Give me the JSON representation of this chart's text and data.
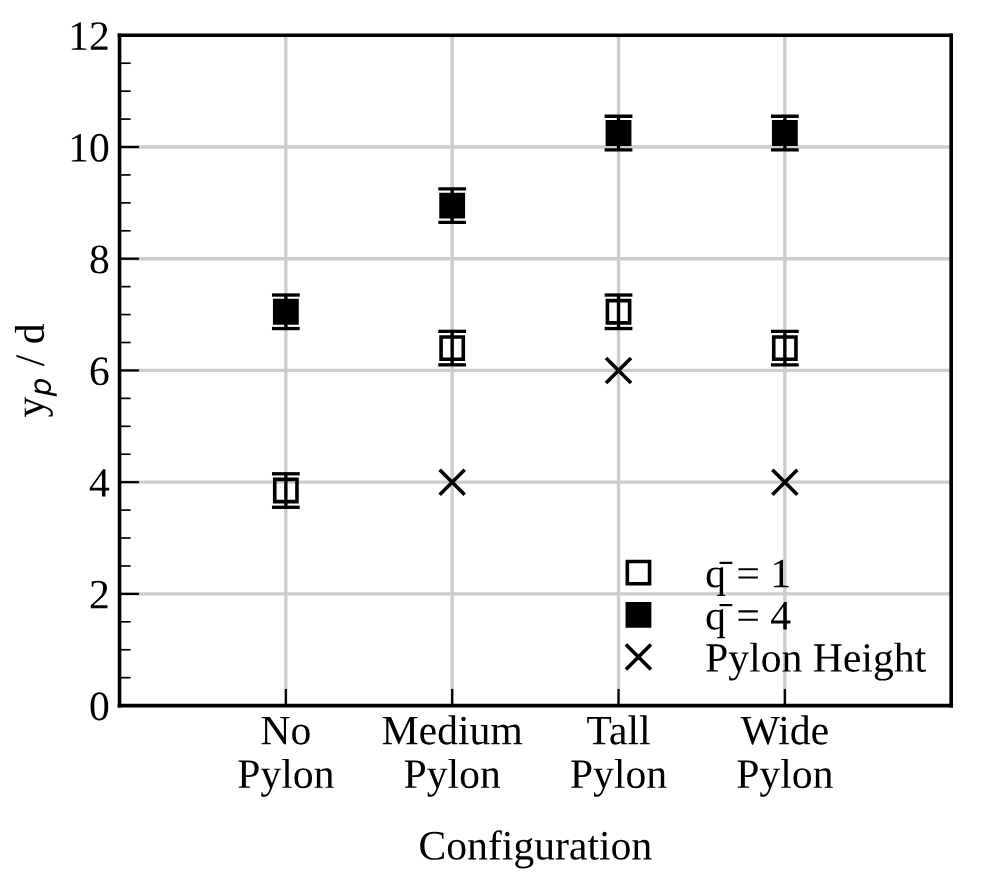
{
  "chart_data": {
    "type": "scatter",
    "xlabel": "Configuration",
    "ylabel": "y$_{p}$ / d",
    "categories": [
      "No\nPylon",
      "Medium\nPylon",
      "Tall\nPylon",
      "Wide\nPylon"
    ],
    "series": [
      {
        "name": "q̄ = 1",
        "color": "#000000",
        "marker": "square",
        "values": [
          3.85,
          6.4,
          7.05,
          6.4
        ],
        "errors": [
          0.3,
          0.3,
          0.3,
          0.3
        ]
      },
      {
        "name": "q̄ = 4",
        "color": "#000000",
        "marker": "square",
        "values": [
          7.05,
          8.95,
          10.25,
          10.25
        ],
        "errors": [
          0.3,
          0.3,
          0.3,
          0.3
        ]
      },
      {
        "name": "Pylon Height",
        "color": "#000000",
        "marker": "cross",
        "values": [
          null,
          4,
          6,
          4
        ]
      }
    ],
    "ylim": [
      0,
      12
    ],
    "yticks": [
      0,
      2,
      4,
      6,
      8,
      10,
      12
    ],
    "grid": true,
    "legend": "bottom right"
  }
}
